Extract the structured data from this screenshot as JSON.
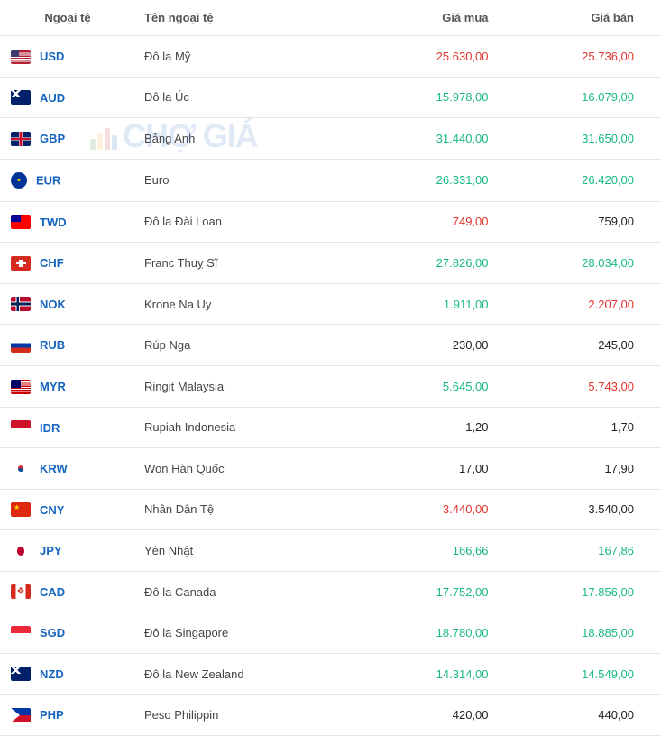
{
  "watermark": "CHỢ GIÁ",
  "headers": {
    "col1": "Ngoại tệ",
    "col2": "Tên ngoại tệ",
    "col3": "Giá mua",
    "col4": "Giá bán"
  },
  "colors": {
    "up": "#18b888",
    "down": "#e3342f",
    "neutral": "#222222",
    "link": "#1565c0",
    "border": "#e5e5e5"
  },
  "rows": [
    {
      "code": "USD",
      "name": "Đô la Mỹ",
      "buy": "25.630,00",
      "buy_color": "#e3342f",
      "sell": "25.736,00",
      "sell_color": "#e3342f"
    },
    {
      "code": "AUD",
      "name": "Đô la Úc",
      "buy": "15.978,00",
      "buy_color": "#18b888",
      "sell": "16.079,00",
      "sell_color": "#18b888"
    },
    {
      "code": "GBP",
      "name": "Bảng Anh",
      "buy": "31.440,00",
      "buy_color": "#18b888",
      "sell": "31.650,00",
      "sell_color": "#18b888"
    },
    {
      "code": "EUR",
      "name": "Euro",
      "buy": "26.331,00",
      "buy_color": "#18b888",
      "sell": "26.420,00",
      "sell_color": "#18b888"
    },
    {
      "code": "TWD",
      "name": "Đô la Đài Loan",
      "buy": "749,00",
      "buy_color": "#e3342f",
      "sell": "759,00",
      "sell_color": "#222222"
    },
    {
      "code": "CHF",
      "name": "Franc Thuỵ Sĩ",
      "buy": "27.826,00",
      "buy_color": "#18b888",
      "sell": "28.034,00",
      "sell_color": "#18b888"
    },
    {
      "code": "NOK",
      "name": "Krone Na Uy",
      "buy": "1.911,00",
      "buy_color": "#18b888",
      "sell": "2.207,00",
      "sell_color": "#e3342f"
    },
    {
      "code": "RUB",
      "name": "Rúp Nga",
      "buy": "230,00",
      "buy_color": "#222222",
      "sell": "245,00",
      "sell_color": "#222222"
    },
    {
      "code": "MYR",
      "name": "Ringit Malaysia",
      "buy": "5.645,00",
      "buy_color": "#18b888",
      "sell": "5.743,00",
      "sell_color": "#e3342f"
    },
    {
      "code": "IDR",
      "name": "Rupiah Indonesia",
      "buy": "1,20",
      "buy_color": "#222222",
      "sell": "1,70",
      "sell_color": "#222222"
    },
    {
      "code": "KRW",
      "name": "Won Hàn Quốc",
      "buy": "17,00",
      "buy_color": "#222222",
      "sell": "17,90",
      "sell_color": "#222222"
    },
    {
      "code": "CNY",
      "name": "Nhân Dân Tệ",
      "buy": "3.440,00",
      "buy_color": "#e3342f",
      "sell": "3.540,00",
      "sell_color": "#222222"
    },
    {
      "code": "JPY",
      "name": "Yên Nhật",
      "buy": "166,66",
      "buy_color": "#18b888",
      "sell": "167,86",
      "sell_color": "#18b888"
    },
    {
      "code": "CAD",
      "name": "Đô la Canada",
      "buy": "17.752,00",
      "buy_color": "#18b888",
      "sell": "17.856,00",
      "sell_color": "#18b888"
    },
    {
      "code": "SGD",
      "name": "Đô la Singapore",
      "buy": "18.780,00",
      "buy_color": "#18b888",
      "sell": "18.885,00",
      "sell_color": "#18b888"
    },
    {
      "code": "NZD",
      "name": "Đô la New Zealand",
      "buy": "14.314,00",
      "buy_color": "#18b888",
      "sell": "14.549,00",
      "sell_color": "#18b888"
    },
    {
      "code": "PHP",
      "name": "Peso Philippin",
      "buy": "420,00",
      "buy_color": "#222222",
      "sell": "440,00",
      "sell_color": "#222222"
    }
  ]
}
